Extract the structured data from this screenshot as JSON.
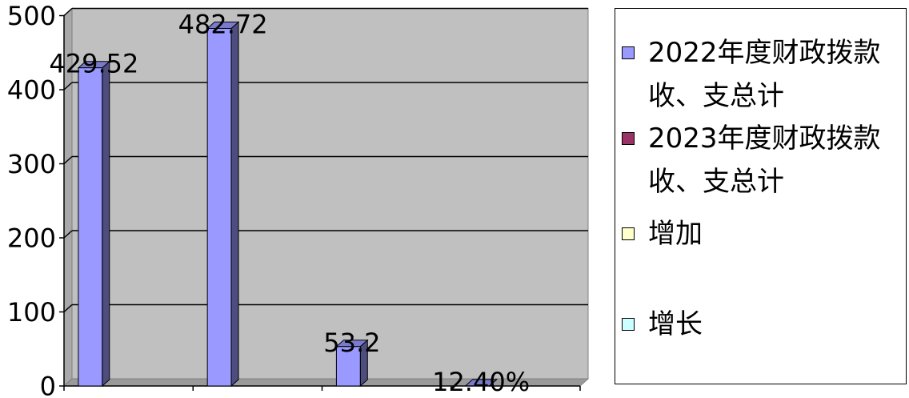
{
  "chart_data": {
    "type": "bar",
    "three_d": true,
    "ylim": [
      0,
      500
    ],
    "yticks": [
      0,
      100,
      200,
      300,
      400,
      500
    ],
    "grid": true,
    "legend_position": "right",
    "plot_background": "#C0C0C0",
    "series": [
      {
        "name": "2022年度财政拨款收、支总计",
        "color": "#9999FF",
        "values": [
          429.52,
          482.72,
          53.2,
          0.124
        ],
        "data_labels": [
          "429.52",
          "482.72",
          "53.2",
          "12.40%"
        ]
      },
      {
        "name": "2023年度财政拨款收、支总计",
        "color": "#993366",
        "values": [
          null,
          null,
          null,
          null
        ]
      },
      {
        "name": "增加",
        "color": "#FFFFCC",
        "values": [
          null,
          null,
          null,
          null
        ]
      },
      {
        "name": "增长",
        "color": "#CCFFFF",
        "values": [
          null,
          null,
          null,
          null
        ]
      }
    ]
  }
}
